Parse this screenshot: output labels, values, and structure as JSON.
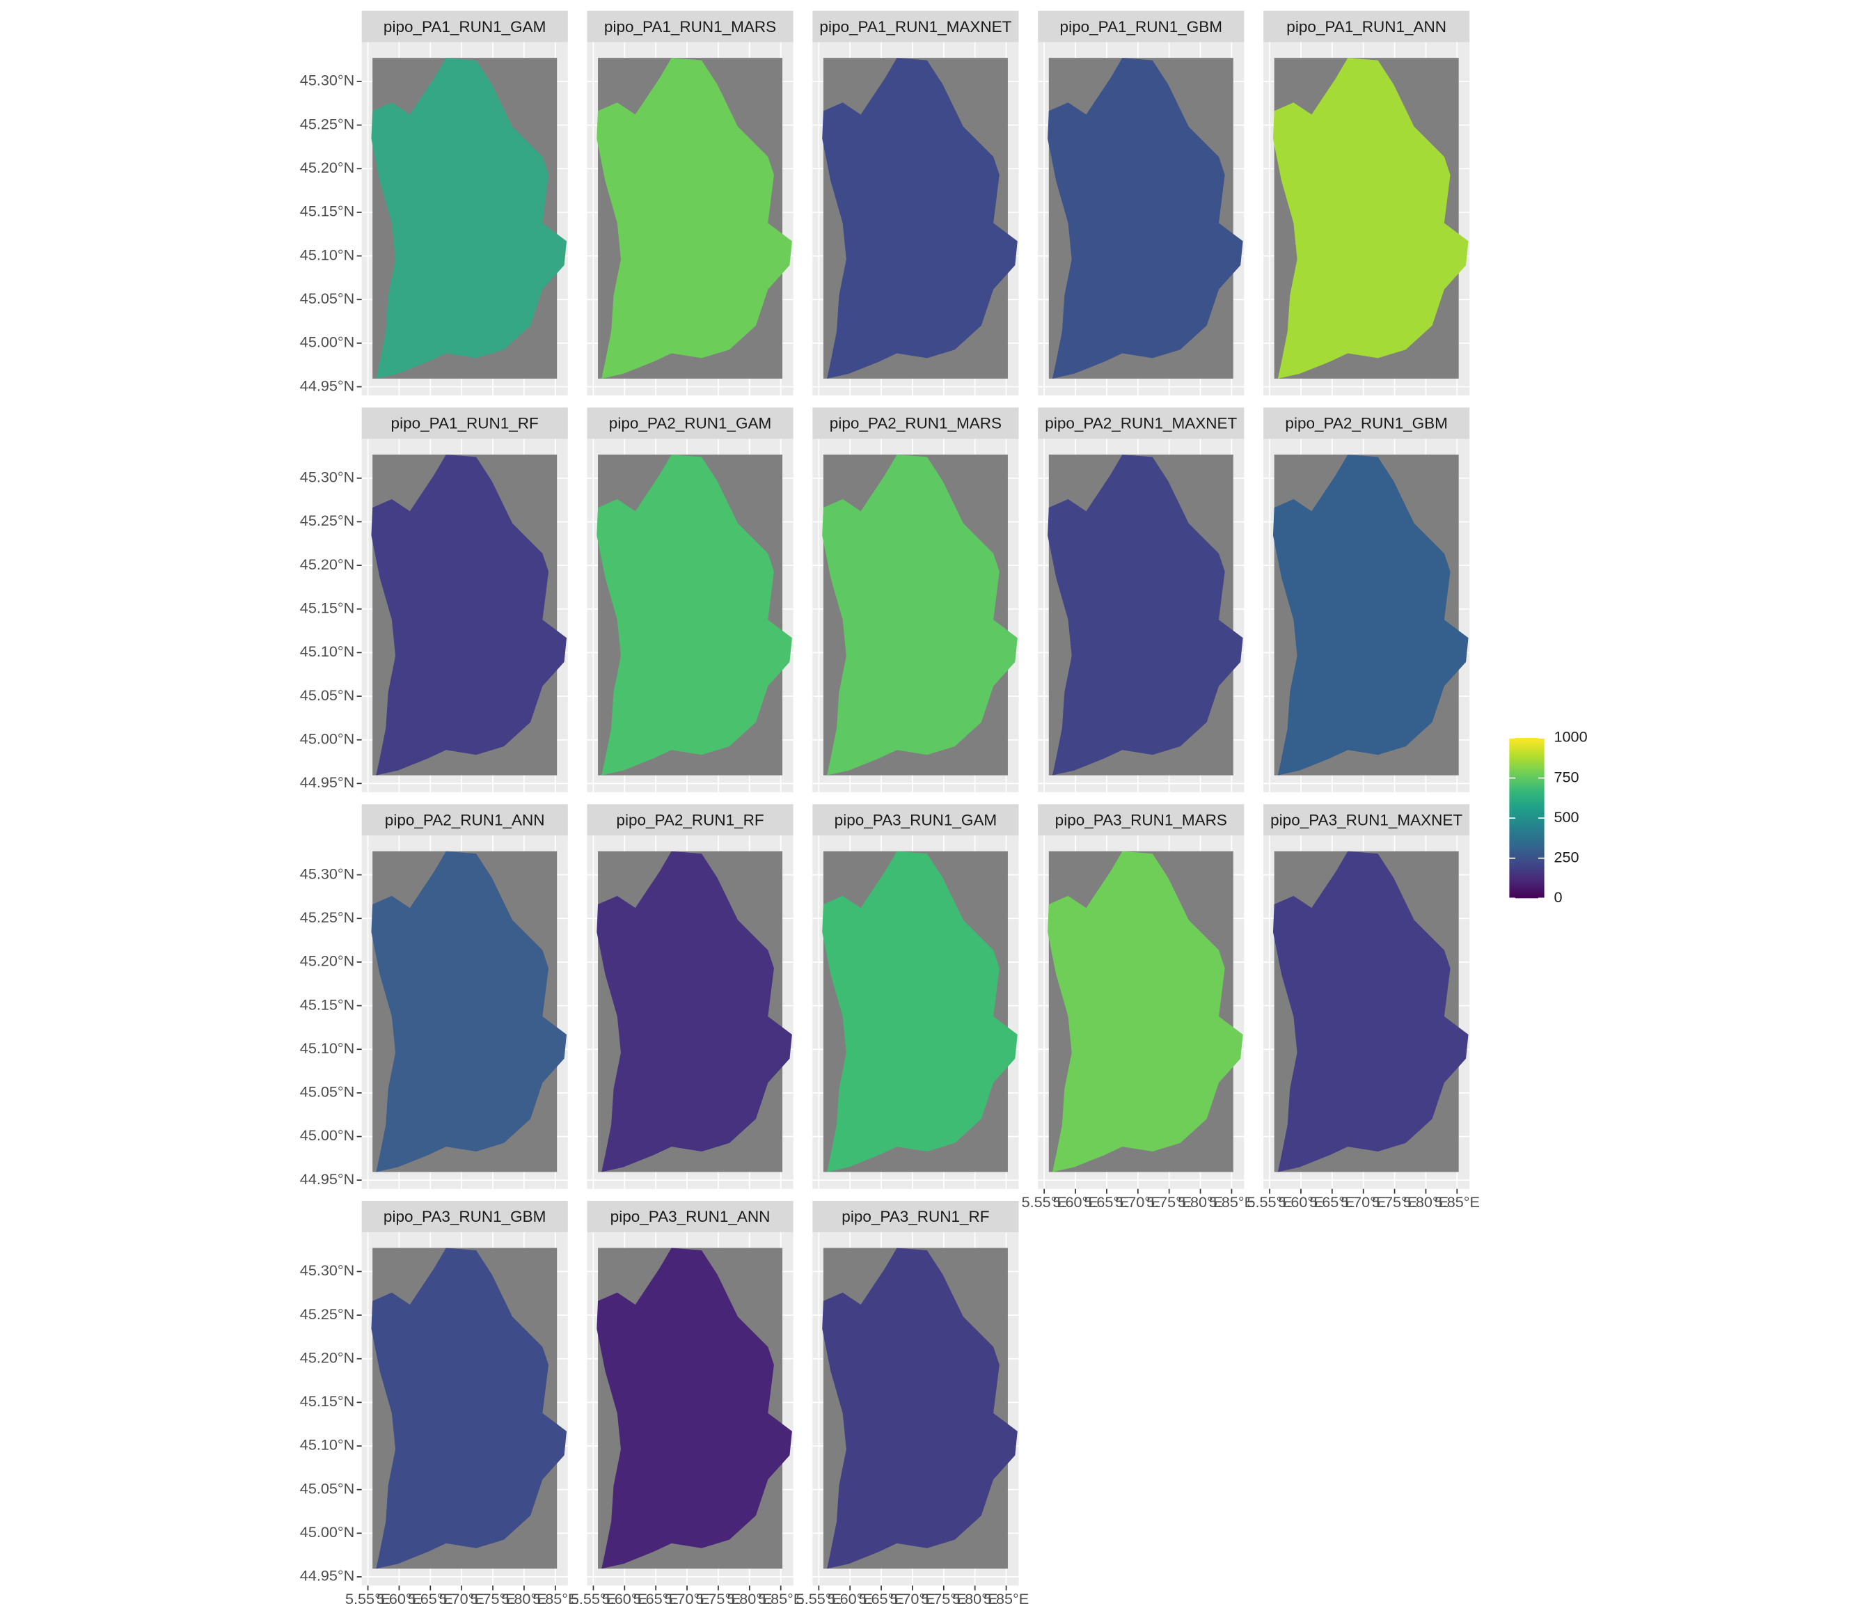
{
  "chart_data": {
    "type": "raster-facet",
    "ncol": 5,
    "na_color": "#7f7f7f",
    "panels": [
      {
        "title": "pipo_PA1_RUN1_GAM",
        "color": "#35a785"
      },
      {
        "title": "pipo_PA1_RUN1_MARS",
        "color": "#6cce59"
      },
      {
        "title": "pipo_PA1_RUN1_MAXNET",
        "color": "#3e4a89"
      },
      {
        "title": "pipo_PA1_RUN1_GBM",
        "color": "#3b528b"
      },
      {
        "title": "pipo_PA1_RUN1_ANN",
        "color": "#a5db36"
      },
      {
        "title": "pipo_PA1_RUN1_RF",
        "color": "#433e85"
      },
      {
        "title": "pipo_PA2_RUN1_GAM",
        "color": "#4ac16d"
      },
      {
        "title": "pipo_PA2_RUN1_MARS",
        "color": "#5ec962"
      },
      {
        "title": "pipo_PA2_RUN1_MAXNET",
        "color": "#414487"
      },
      {
        "title": "pipo_PA2_RUN1_GBM",
        "color": "#355f8d"
      },
      {
        "title": "pipo_PA2_RUN1_ANN",
        "color": "#3b5e8c"
      },
      {
        "title": "pipo_PA2_RUN1_RF",
        "color": "#46327e"
      },
      {
        "title": "pipo_PA3_RUN1_GAM",
        "color": "#3fbc73"
      },
      {
        "title": "pipo_PA3_RUN1_MARS",
        "color": "#6ece58"
      },
      {
        "title": "pipo_PA3_RUN1_MAXNET",
        "color": "#433e85"
      },
      {
        "title": "pipo_PA3_RUN1_GBM",
        "color": "#3e4c8a"
      },
      {
        "title": "pipo_PA3_RUN1_ANN",
        "color": "#482576"
      },
      {
        "title": "pipo_PA3_RUN1_RF",
        "color": "#423f85"
      }
    ],
    "xlim": [
      5.54,
      5.87
    ],
    "xticks": [
      {
        "value": 5.55,
        "label": "5.55°E"
      },
      {
        "value": 5.6,
        "label": "5.60°E"
      },
      {
        "value": 5.65,
        "label": "5.65°E"
      },
      {
        "value": 5.7,
        "label": "5.70°E"
      },
      {
        "value": 5.75,
        "label": "5.75°E"
      },
      {
        "value": 5.8,
        "label": "5.80°E"
      },
      {
        "value": 5.85,
        "label": "5.85°E"
      }
    ],
    "ylim": [
      44.94,
      45.345
    ],
    "yticks": [
      {
        "value": 44.95,
        "label": "44.95°N"
      },
      {
        "value": 45.0,
        "label": "45.00°N"
      },
      {
        "value": 45.05,
        "label": "45.05°N"
      },
      {
        "value": 45.1,
        "label": "45.10°N"
      },
      {
        "value": 45.15,
        "label": "45.15°N"
      },
      {
        "value": 45.2,
        "label": "45.20°N"
      },
      {
        "value": 45.25,
        "label": "45.25°N"
      },
      {
        "value": 45.3,
        "label": "45.30°N"
      }
    ],
    "grid": true,
    "legend": {
      "position": "right",
      "lim": [
        0,
        1000
      ],
      "ticks": [
        0,
        250,
        500,
        750,
        1000
      ],
      "colors": [
        "#440154",
        "#482878",
        "#3e4989",
        "#31688e",
        "#26828e",
        "#1f9e89",
        "#35b779",
        "#6ece58",
        "#b5de2b",
        "#fde725"
      ]
    }
  }
}
